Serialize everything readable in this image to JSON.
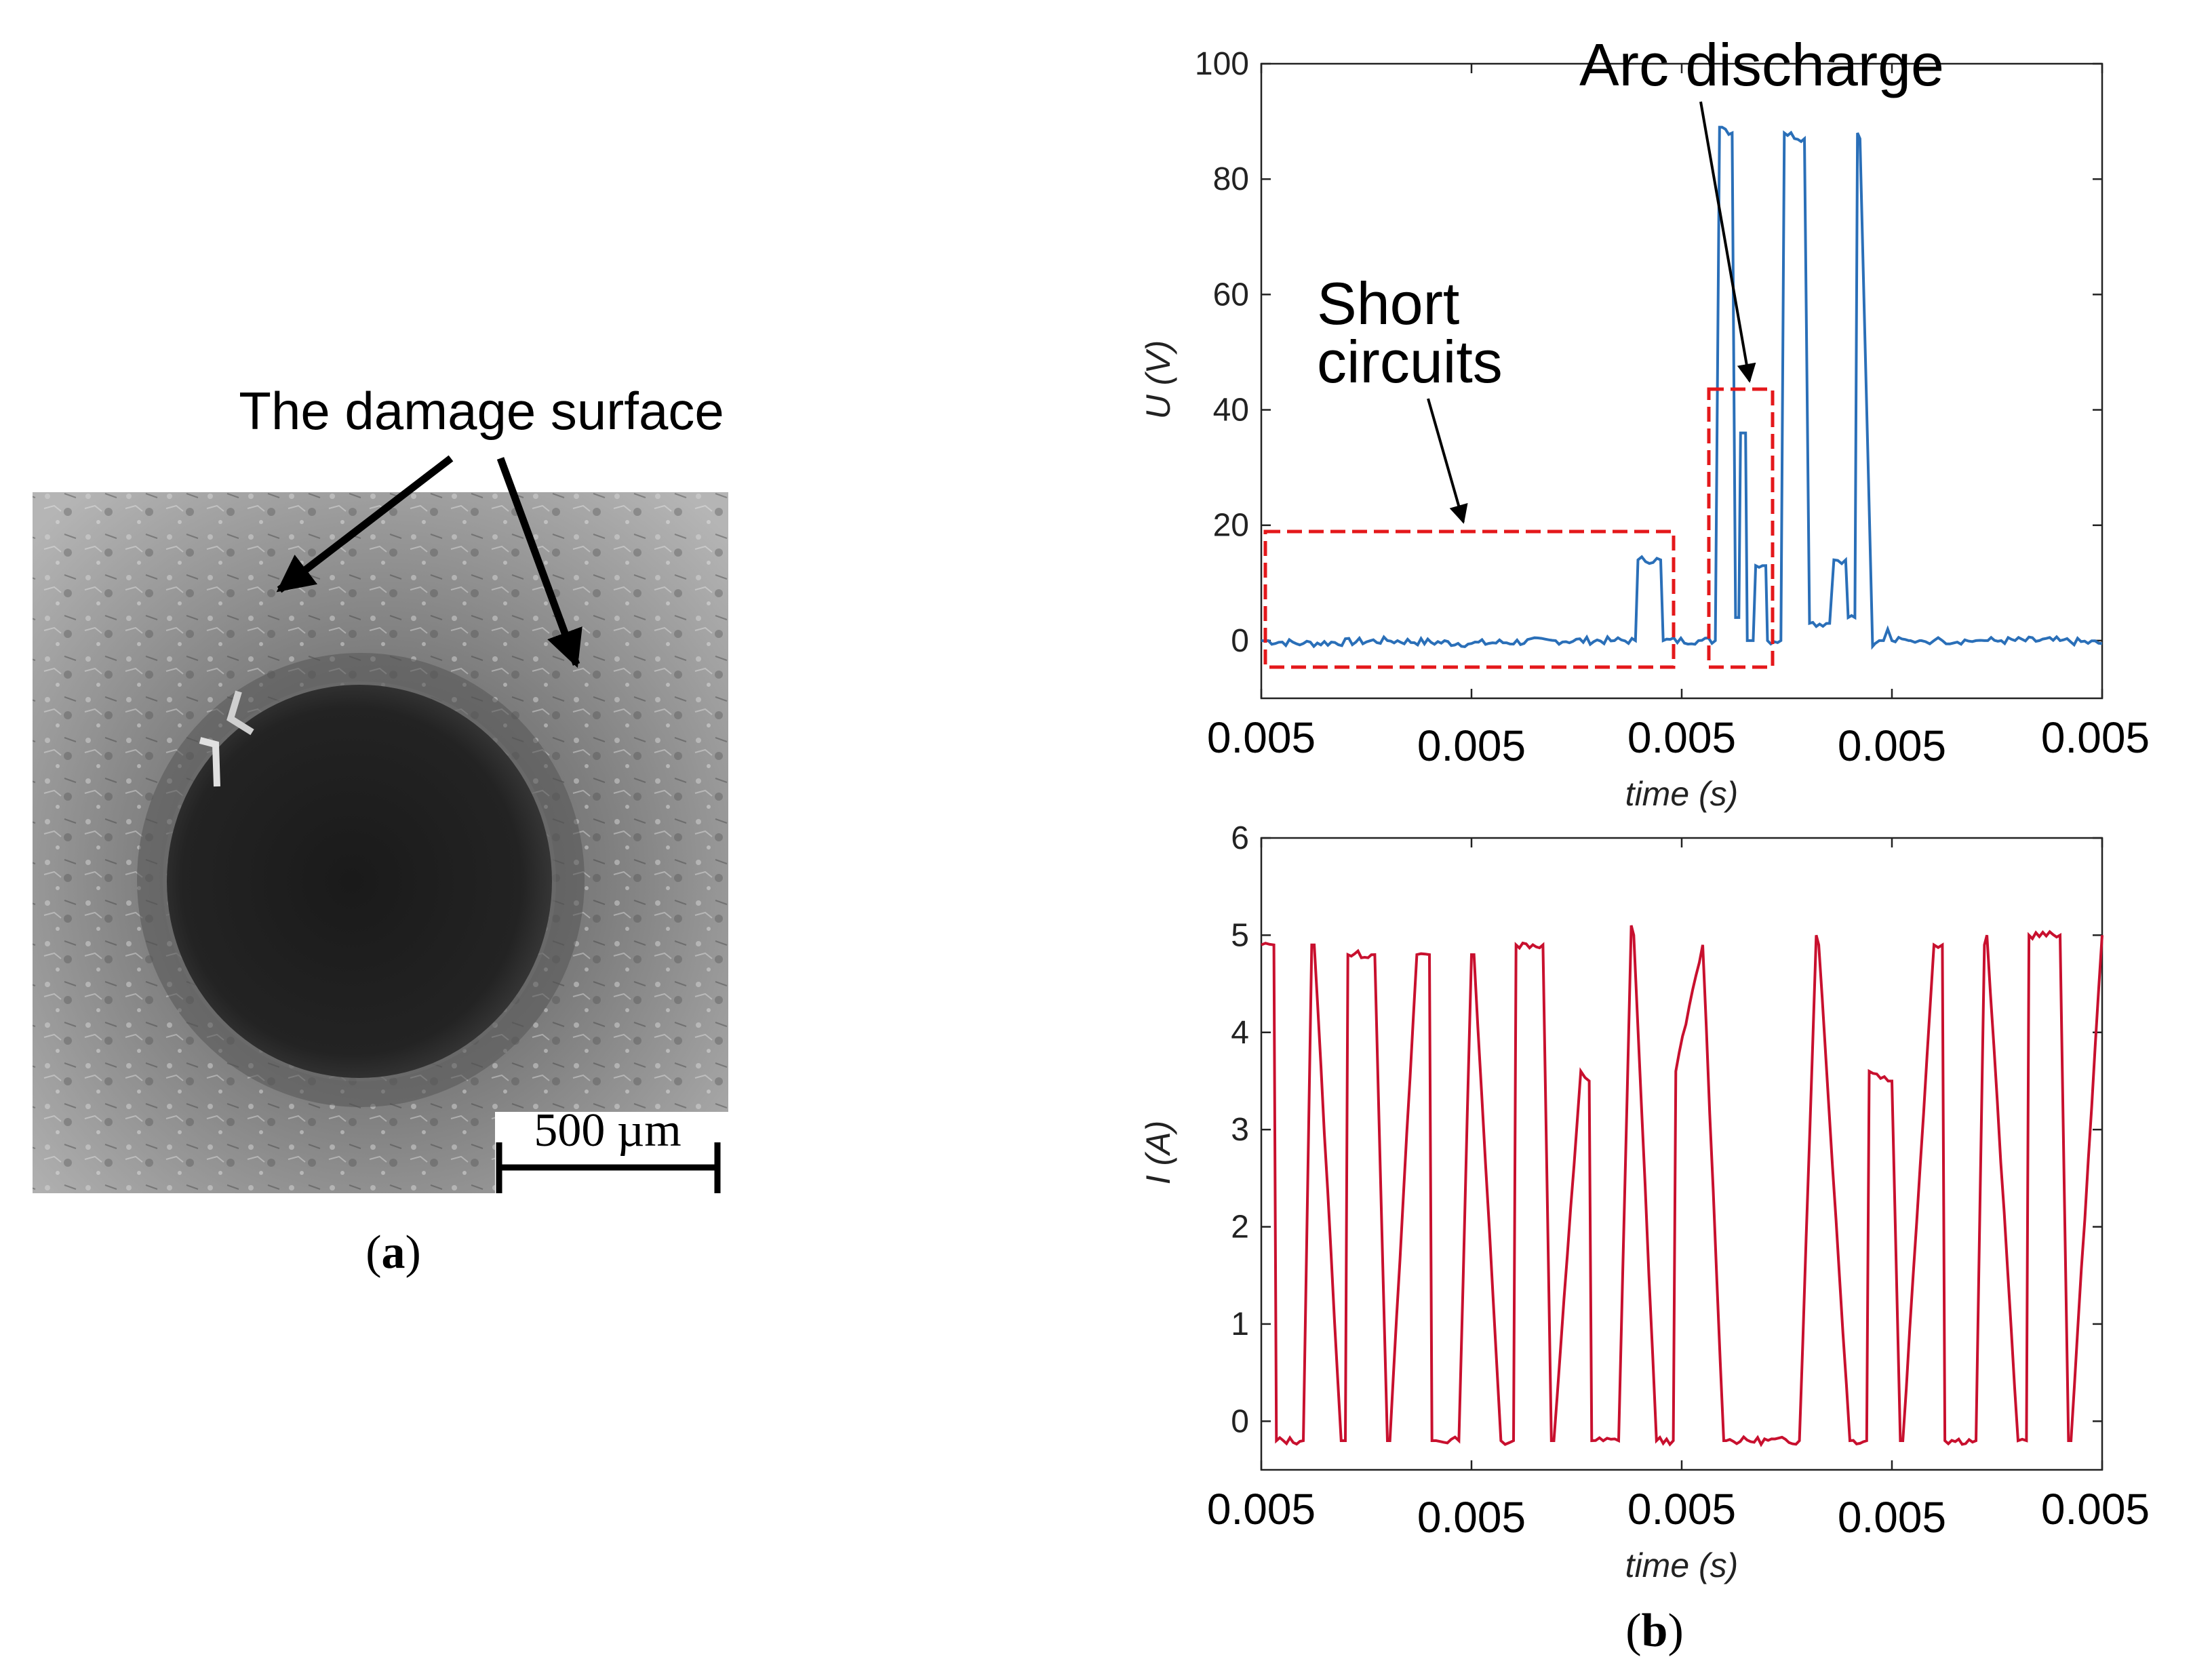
{
  "panel_a": {
    "annotation": "The damage surface",
    "scale_bar_label": "500 µm",
    "caption_letter": "a",
    "colors": {
      "hole": "#1c1c1c",
      "surface": "#8a8a8a",
      "arrow": "#000000"
    }
  },
  "panel_b": {
    "caption_letter": "b",
    "annotations": {
      "short_circuits_line1": "Short",
      "short_circuits_line2": "circuits",
      "arc_discharge": "Arc discharge"
    },
    "colors": {
      "voltage": "#2a6fb8",
      "current": "#c8102e",
      "box": "#e4181b",
      "axis": "#222222"
    }
  },
  "chart_data": [
    {
      "type": "line",
      "title": "",
      "xlabel": "time (s)",
      "ylabel": "U (V)",
      "x_tick_labels": [
        "0.005",
        "0.005",
        "0.005",
        "0.005",
        "0.005"
      ],
      "y_ticks": [
        0,
        20,
        40,
        60,
        80,
        100
      ],
      "xlim": [
        0,
        1
      ],
      "ylim": [
        -10,
        100
      ],
      "grid": false,
      "series": [
        {
          "name": "U",
          "x": [
            0.0,
            0.05,
            0.15,
            0.25,
            0.35,
            0.42,
            0.445,
            0.448,
            0.475,
            0.478,
            0.52,
            0.54,
            0.545,
            0.548,
            0.56,
            0.564,
            0.568,
            0.57,
            0.576,
            0.578,
            0.585,
            0.588,
            0.6,
            0.602,
            0.618,
            0.622,
            0.646,
            0.652,
            0.676,
            0.681,
            0.695,
            0.698,
            0.706,
            0.709,
            0.712,
            0.727,
            0.73,
            0.735,
            0.74,
            0.745,
            0.75,
            0.77,
            0.772,
            0.783,
            0.785,
            0.8,
            0.81,
            0.85,
            0.86,
            0.864,
            0.88,
            0.95,
            1.0
          ],
          "y": [
            0,
            -0.5,
            0,
            -0.5,
            0,
            0,
            0,
            14,
            14,
            0,
            0,
            0,
            89,
            89,
            88,
            4,
            4,
            36,
            36,
            0,
            0,
            13,
            13,
            0,
            0,
            88,
            87,
            3,
            3,
            14,
            14,
            4,
            4,
            88,
            87,
            -1,
            -0.5,
            0,
            0,
            2,
            0,
            0,
            0,
            0,
            0,
            0,
            0,
            0,
            0,
            0,
            0,
            0,
            -0.5
          ]
        }
      ]
    },
    {
      "type": "line",
      "title": "",
      "xlabel": "time (s)",
      "ylabel": "I (A)",
      "x_tick_labels": [
        "0.005",
        "0.005",
        "0.005",
        "0.005",
        "0.005"
      ],
      "y_ticks": [
        0,
        1,
        2,
        3,
        4,
        5,
        6
      ],
      "xlim": [
        0,
        1
      ],
      "ylim": [
        -0.5,
        6
      ],
      "grid": false,
      "series": [
        {
          "name": "I",
          "x": [
            0.0,
            0.015,
            0.018,
            0.05,
            0.06,
            0.063,
            0.095,
            0.1,
            0.103,
            0.135,
            0.15,
            0.153,
            0.185,
            0.2,
            0.203,
            0.235,
            0.25,
            0.253,
            0.285,
            0.3,
            0.303,
            0.335,
            0.345,
            0.348,
            0.38,
            0.39,
            0.393,
            0.425,
            0.44,
            0.443,
            0.47,
            0.49,
            0.493,
            0.525,
            0.55,
            0.553,
            0.64,
            0.66,
            0.663,
            0.7,
            0.72,
            0.723,
            0.75,
            0.76,
            0.763,
            0.8,
            0.81,
            0.813,
            0.85,
            0.86,
            0.863,
            0.9,
            0.91,
            0.913,
            0.95,
            0.96,
            0.963,
            1.0
          ],
          "y": [
            4.9,
            4.9,
            -0.2,
            -0.2,
            4.9,
            4.9,
            -0.2,
            -0.2,
            4.8,
            4.8,
            -0.2,
            -0.2,
            4.8,
            4.8,
            -0.2,
            -0.2,
            4.8,
            4.8,
            -0.2,
            -0.2,
            4.9,
            4.9,
            -0.2,
            -0.2,
            3.6,
            3.5,
            -0.2,
            -0.2,
            5.1,
            5.0,
            -0.2,
            -0.2,
            3.6,
            4.9,
            -0.2,
            -0.2,
            -0.2,
            5.0,
            4.9,
            -0.2,
            -0.2,
            3.6,
            3.5,
            -0.2,
            -0.2,
            4.9,
            4.9,
            -0.2,
            -0.2,
            4.9,
            5.0,
            -0.2,
            -0.2,
            5.0,
            5.0,
            -0.2,
            -0.2,
            5.0
          ]
        }
      ]
    }
  ]
}
